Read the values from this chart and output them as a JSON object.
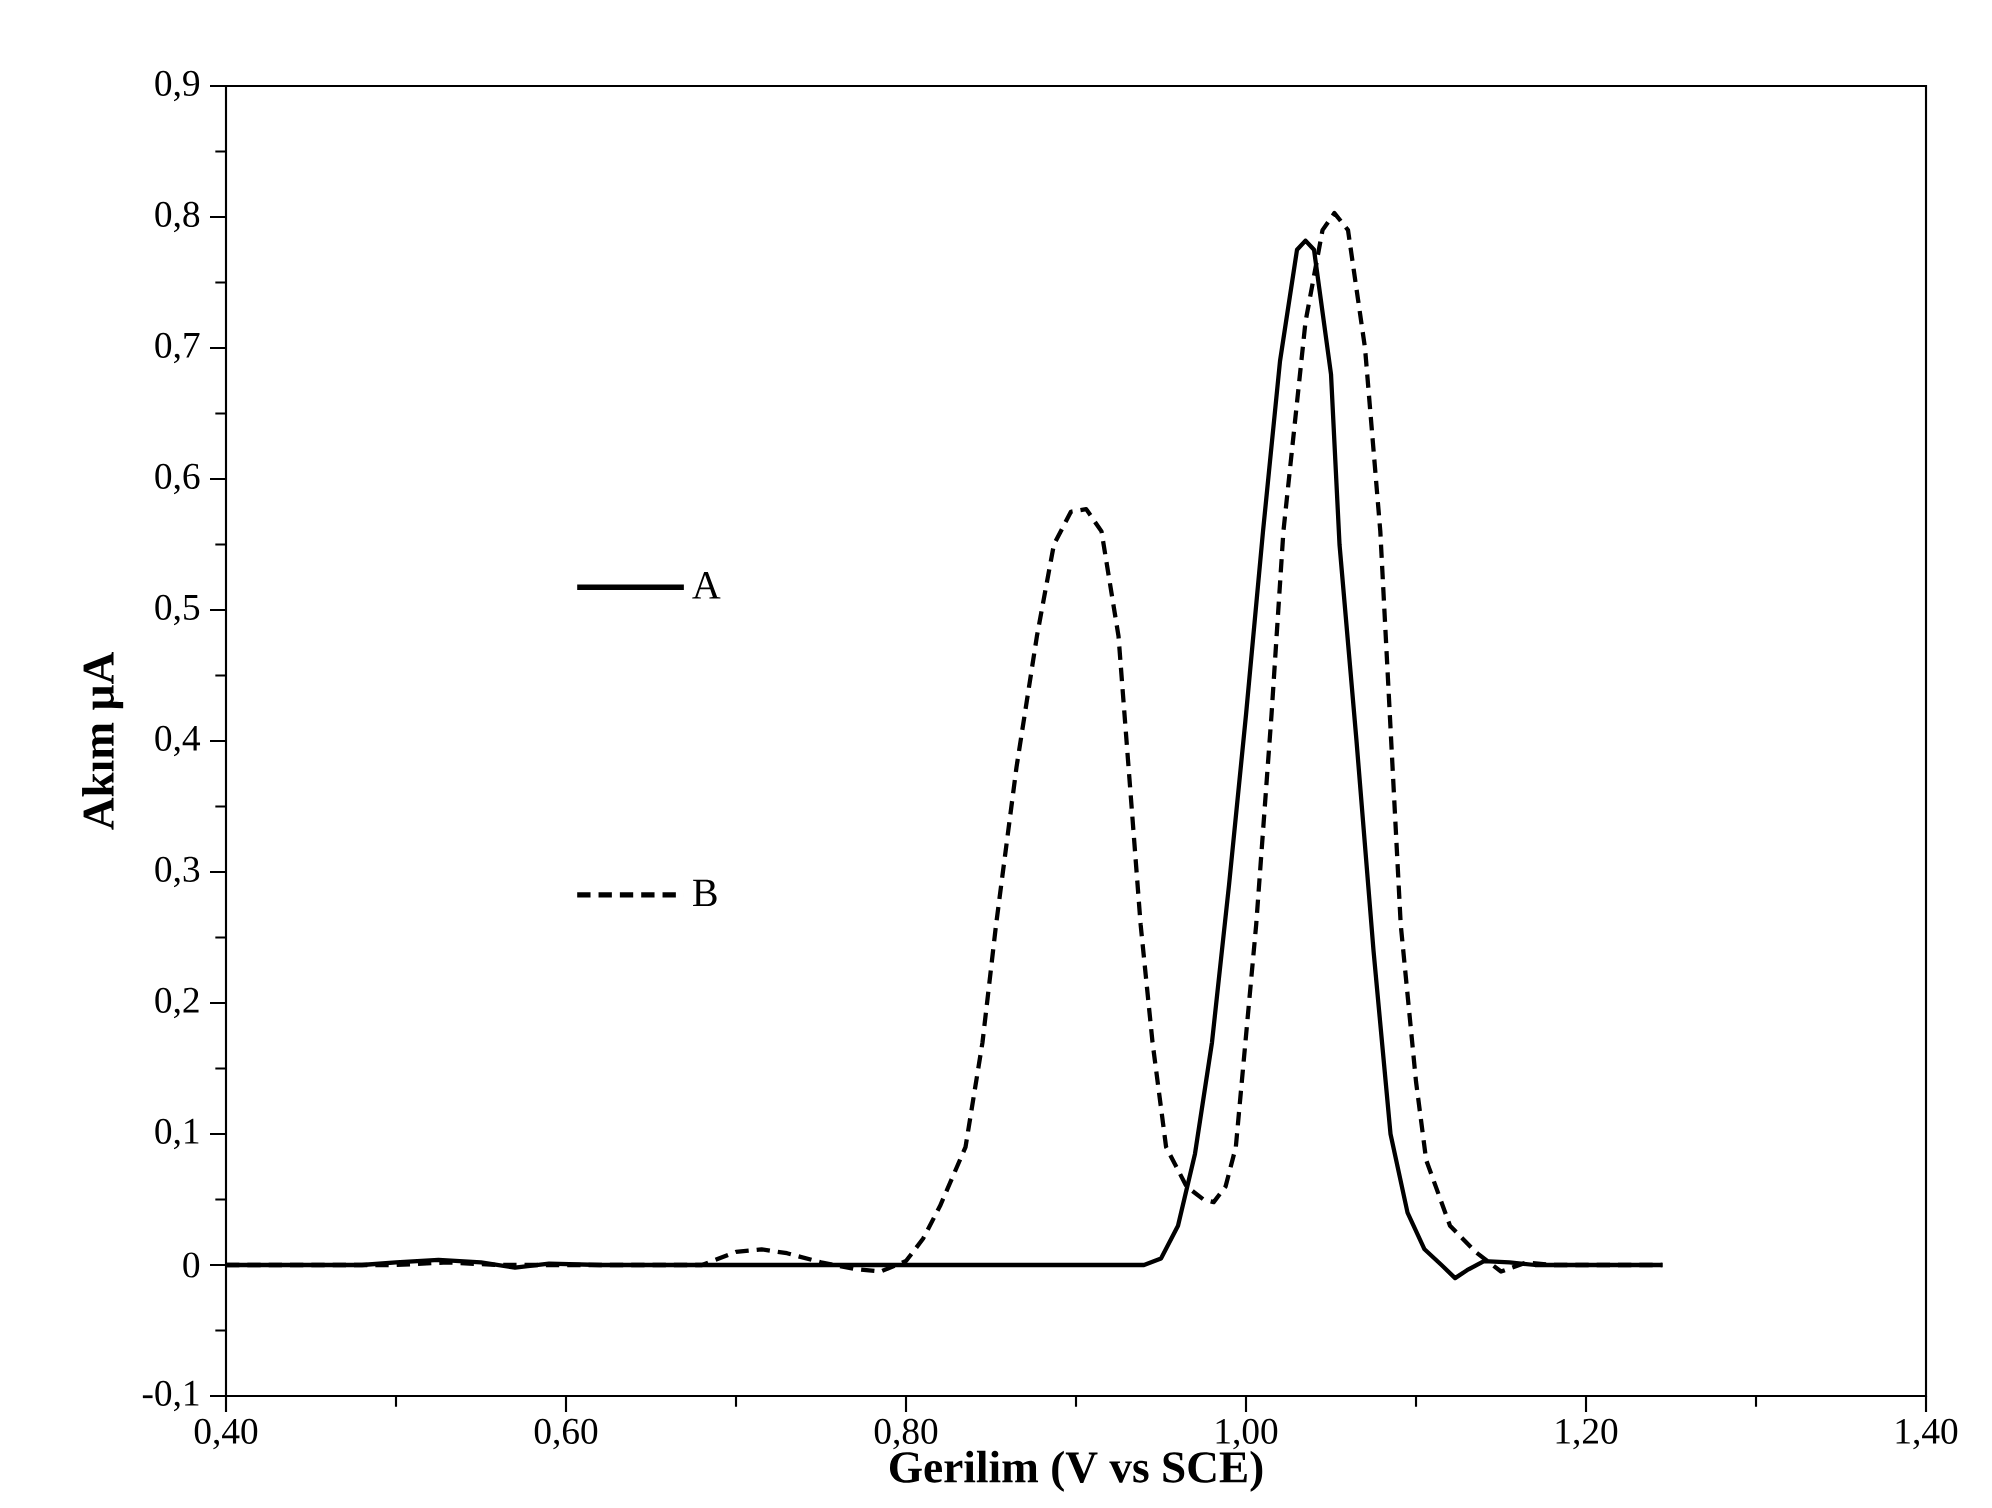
{
  "chart_data": {
    "type": "line",
    "xlabel": "Gerilim (V vs SCE)",
    "ylabel": "Akım µA",
    "xlim": [
      0.4,
      1.4
    ],
    "ylim": [
      -0.1,
      0.9
    ],
    "xticks": [
      {
        "value": 0.4,
        "label": "0,40"
      },
      {
        "value": 0.6,
        "label": "0,60"
      },
      {
        "value": 0.8,
        "label": "0,80"
      },
      {
        "value": 1.0,
        "label": "1,00"
      },
      {
        "value": 1.2,
        "label": "1,20"
      },
      {
        "value": 1.4,
        "label": "1,40"
      }
    ],
    "yticks": [
      {
        "value": -0.1,
        "label": "-0,1"
      },
      0,
      {
        "value": 0.1,
        "label": "0,1"
      },
      {
        "value": 0.2,
        "label": "0,2"
      },
      {
        "value": 0.3,
        "label": "0,3"
      },
      {
        "value": 0.4,
        "label": "0,4"
      },
      {
        "value": 0.5,
        "label": "0,5"
      },
      {
        "value": 0.6,
        "label": "0,6"
      },
      {
        "value": 0.7,
        "label": "0,7"
      },
      {
        "value": 0.8,
        "label": "0,8"
      },
      {
        "value": 0.9,
        "label": "0,9"
      }
    ],
    "grid": false,
    "legend": "left",
    "marker": "none",
    "series": [
      {
        "name": "A",
        "color": "#000000",
        "line_style": "solid",
        "x": [
          0.4,
          0.48,
          0.5,
          0.525,
          0.55,
          0.57,
          0.59,
          0.62,
          0.94,
          0.95,
          0.96,
          0.97,
          0.98,
          0.99,
          1.0,
          1.01,
          1.02,
          1.03,
          1.035,
          1.04,
          1.05,
          1.055,
          1.065,
          1.075,
          1.085,
          1.095,
          1.105,
          1.115,
          1.123,
          1.13,
          1.14,
          1.155,
          1.17,
          1.245
        ],
        "values": [
          0,
          0,
          0.002,
          0.004,
          0.002,
          -0.002,
          0.001,
          0,
          0,
          0.005,
          0.03,
          0.085,
          0.17,
          0.29,
          0.42,
          0.56,
          0.69,
          0.775,
          0.782,
          0.775,
          0.68,
          0.55,
          0.4,
          0.24,
          0.1,
          0.04,
          0.012,
          0.0,
          -0.01,
          -0.004,
          0.003,
          0.002,
          0,
          0
        ]
      },
      {
        "name": "B",
        "color": "#000000",
        "line_style": "dashed",
        "x": [
          0.4,
          0.5,
          0.53,
          0.56,
          0.68,
          0.7,
          0.715,
          0.73,
          0.75,
          0.77,
          0.785,
          0.8,
          0.81,
          0.82,
          0.835,
          0.845,
          0.853,
          0.865,
          0.877,
          0.887,
          0.897,
          0.906,
          0.915,
          0.925,
          0.938,
          0.945,
          0.953,
          0.965,
          0.975,
          0.981,
          0.988,
          0.994,
          1.006,
          1.015,
          1.022,
          1.035,
          1.045,
          1.052,
          1.06,
          1.07,
          1.079,
          1.091,
          1.1,
          1.106,
          1.12,
          1.135,
          1.15,
          1.165,
          1.18,
          1.245
        ],
        "values": [
          0,
          0,
          0.002,
          0,
          0,
          0.01,
          0.012,
          0.009,
          0.002,
          -0.003,
          -0.005,
          0.003,
          0.02,
          0.045,
          0.09,
          0.17,
          0.26,
          0.38,
          0.48,
          0.55,
          0.575,
          0.577,
          0.56,
          0.48,
          0.26,
          0.17,
          0.09,
          0.06,
          0.05,
          0.048,
          0.06,
          0.09,
          0.26,
          0.42,
          0.56,
          0.72,
          0.79,
          0.803,
          0.79,
          0.7,
          0.56,
          0.26,
          0.14,
          0.08,
          0.03,
          0.01,
          -0.005,
          0.002,
          0,
          0
        ]
      }
    ]
  }
}
